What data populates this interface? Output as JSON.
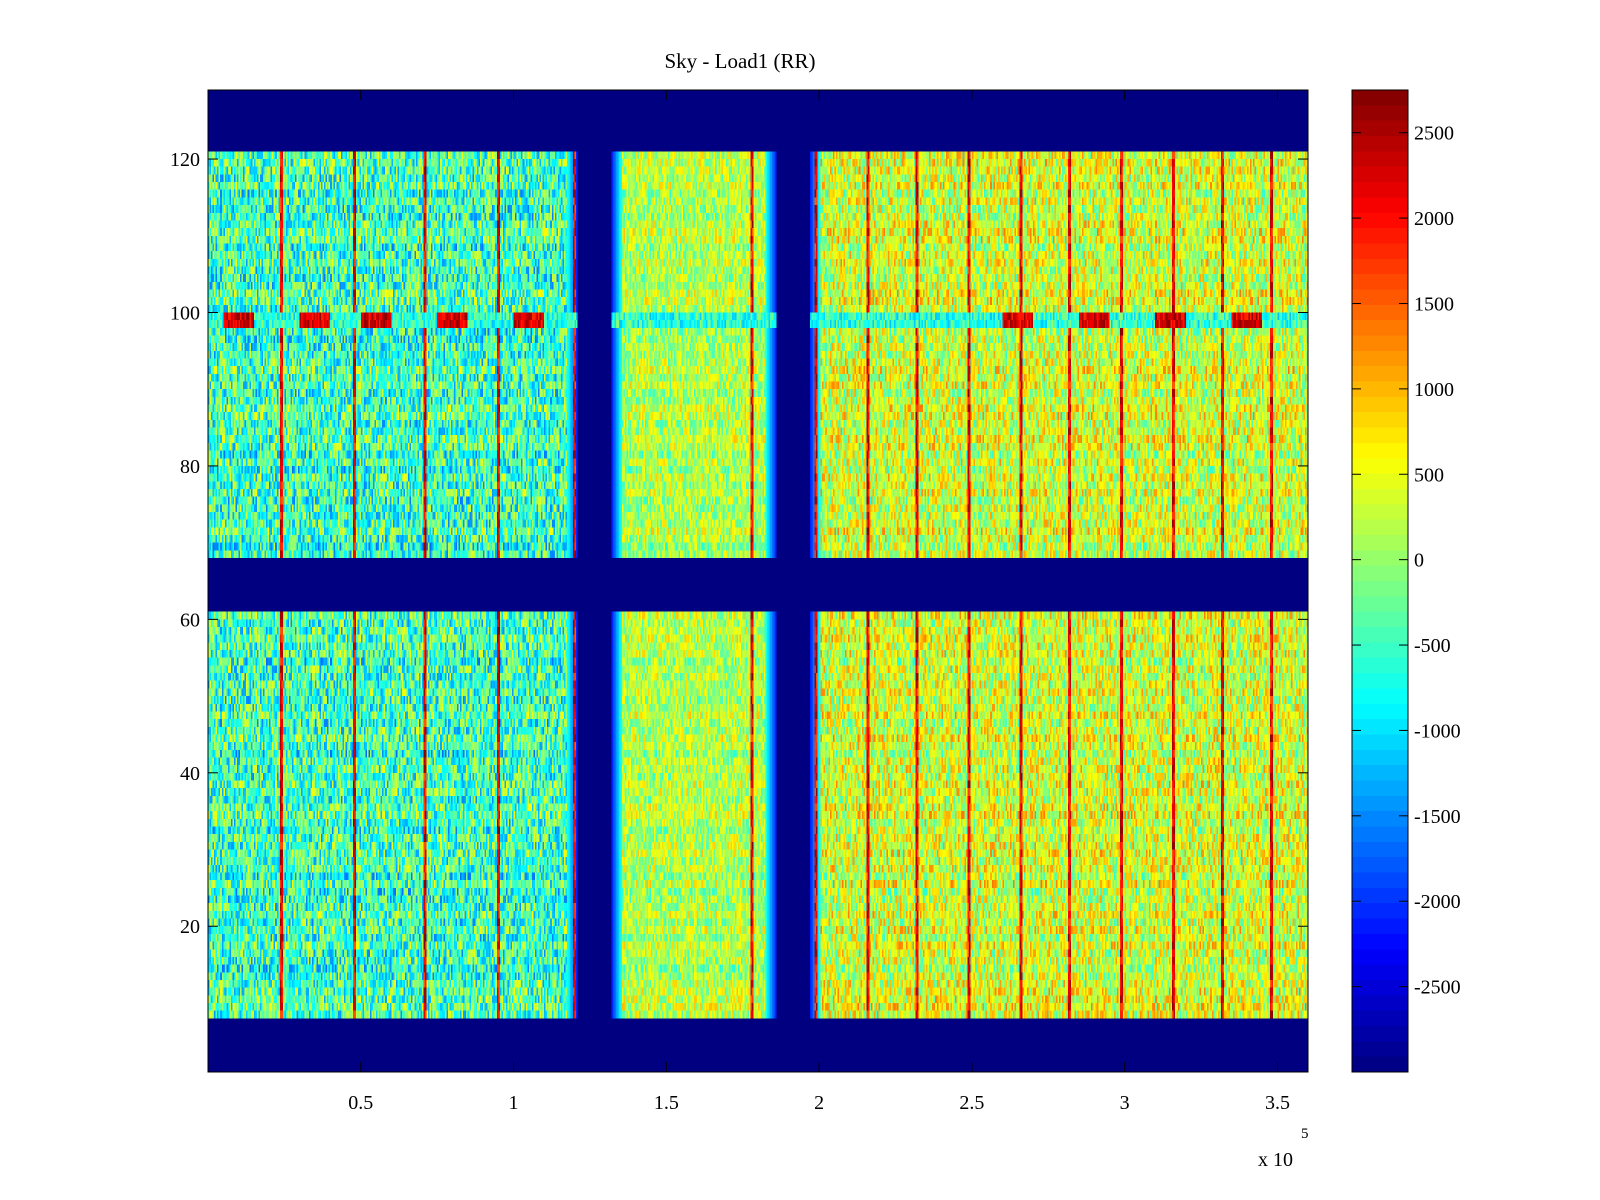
{
  "chart_data": {
    "type": "heatmap",
    "title": "Sky - Load1 (RR)",
    "xlabel": "",
    "ylabel": "",
    "x_multiplier_label": "x 10",
    "x_multiplier_exponent": "5",
    "xlim": [
      0,
      360000
    ],
    "ylim": [
      1,
      129
    ],
    "x_ticks": [
      50000,
      100000,
      150000,
      200000,
      250000,
      300000,
      350000
    ],
    "x_tick_labels": [
      "0.5",
      "1",
      "1.5",
      "2",
      "2.5",
      "3",
      "3.5"
    ],
    "y_ticks": [
      20,
      40,
      60,
      80,
      100,
      120
    ],
    "y_tick_labels": [
      "20",
      "40",
      "60",
      "80",
      "100",
      "120"
    ],
    "colorbar": {
      "colormap": "jet",
      "range": [
        -3000,
        2750
      ],
      "ticks": [
        2500,
        2000,
        1500,
        1000,
        500,
        0,
        -500,
        -1000,
        -1500,
        -2000,
        -2500
      ],
      "tick_labels": [
        "2500",
        "2000",
        "1500",
        "1000",
        "500",
        "0",
        "-500",
        "-1000",
        "-1500",
        "-2000",
        "-2500"
      ]
    },
    "masked_value": -3000,
    "masked_x_bands": [
      [
        121000,
        132000
      ],
      [
        186000,
        197000
      ]
    ],
    "masked_y_bands": [
      [
        1,
        8
      ],
      [
        61.5,
        68.5
      ],
      [
        121.5,
        129
      ]
    ],
    "strong_rows": [
      99,
      100
    ],
    "hot_spots_x": [
      10000,
      35000,
      55000,
      80000,
      105000,
      265000,
      290000,
      315000,
      340000
    ],
    "value_ranges": {
      "x_0_to_120000": [
        -1500,
        500
      ],
      "x_132000_to_186000": [
        -500,
        800
      ],
      "x_197000_to_360000": [
        -500,
        1200
      ],
      "vertical_stripes": [
        1500,
        2700
      ]
    },
    "stripe_x": [
      24000,
      48000,
      71000,
      95000,
      120000,
      178000,
      199000,
      216000,
      232000,
      249000,
      266000,
      282000,
      299000,
      316000,
      332000,
      348000
    ]
  }
}
